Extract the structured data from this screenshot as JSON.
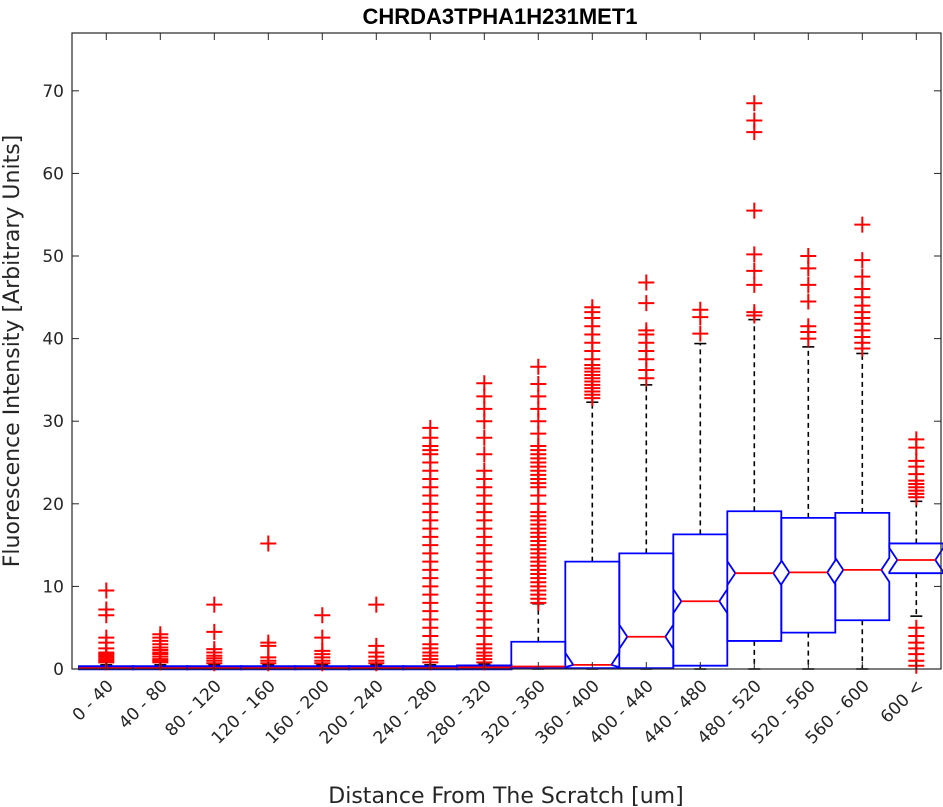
{
  "chart_data": {
    "type": "box",
    "title": "CHRDA3TPHA1H231MET1",
    "xlabel": "Distance From The Scratch [um]",
    "ylabel": "Fluorescence Intensity [Arbitrary Units]",
    "ylim": [
      0,
      77
    ],
    "yticks": [
      0,
      10,
      20,
      30,
      40,
      50,
      60,
      70
    ],
    "notched": true,
    "colors": {
      "box": "#0000ff",
      "median": "#ff0000",
      "outlier": "#ff0000",
      "whisker": "#000000"
    },
    "categories": [
      "0 - 40",
      "40 - 80",
      "80 - 120",
      "120 - 160",
      "160 - 200",
      "200 - 240",
      "240 - 280",
      "280 - 320",
      "320 - 360",
      "360 - 400",
      "400 - 440",
      "440 - 480",
      "480 - 520",
      "520 - 560",
      "560 - 600",
      "600 <"
    ],
    "boxes": [
      {
        "q1": 0,
        "median": 0.1,
        "q3": 0.3,
        "whisker_low": 0,
        "whisker_high": 0.5,
        "outliers": [
          0.8,
          1.0,
          1.2,
          1.4,
          1.6,
          1.8,
          2.0,
          2.5,
          3.2,
          3.8,
          6.5,
          7.2,
          9.5
        ]
      },
      {
        "q1": 0,
        "median": 0.1,
        "q3": 0.3,
        "whisker_low": 0,
        "whisker_high": 0.5,
        "outliers": [
          0.8,
          1.0,
          1.2,
          1.5,
          1.8,
          2.0,
          2.3,
          2.6,
          3.0,
          3.4,
          3.8,
          4.2
        ]
      },
      {
        "q1": 0,
        "median": 0.1,
        "q3": 0.3,
        "whisker_low": 0,
        "whisker_high": 0.5,
        "outliers": [
          0.7,
          1.0,
          1.3,
          1.6,
          2.0,
          2.4,
          4.5,
          7.8
        ]
      },
      {
        "q1": 0,
        "median": 0.1,
        "q3": 0.3,
        "whisker_low": 0,
        "whisker_high": 0.5,
        "outliers": [
          0.7,
          1.0,
          1.4,
          2.8,
          3.2,
          15.2
        ]
      },
      {
        "q1": 0,
        "median": 0.1,
        "q3": 0.3,
        "whisker_low": 0,
        "whisker_high": 0.5,
        "outliers": [
          0.7,
          1.0,
          1.4,
          1.8,
          2.2,
          3.8,
          6.5
        ]
      },
      {
        "q1": 0,
        "median": 0.1,
        "q3": 0.3,
        "whisker_low": 0,
        "whisker_high": 0.5,
        "outliers": [
          0.7,
          1.0,
          1.5,
          2.0,
          2.8,
          7.8
        ]
      },
      {
        "q1": 0,
        "median": 0.1,
        "q3": 0.3,
        "whisker_low": 0,
        "whisker_high": 0.5,
        "outliers": [
          0.8,
          1.2,
          1.6,
          2.0,
          2.5,
          3.0,
          4.0,
          5.0,
          6.0,
          7.0,
          8.0,
          9.0,
          10.0,
          11.0,
          12.0,
          13.0,
          14.0,
          15.0,
          16.0,
          17.0,
          18.0,
          19.0,
          20.0,
          21.0,
          22.0,
          23.0,
          24.0,
          25.0,
          26.0,
          26.5,
          27.0,
          28.0,
          29.2
        ]
      },
      {
        "q1": 0,
        "median": 0.2,
        "q3": 0.4,
        "whisker_low": 0,
        "whisker_high": 0.6,
        "outliers": [
          0.8,
          1.2,
          1.6,
          2.0,
          2.5,
          3.0,
          4.0,
          5.0,
          6.0,
          7.0,
          8.0,
          9.0,
          10.0,
          11.0,
          12.0,
          13.0,
          14.0,
          15.0,
          16.0,
          17.0,
          18.0,
          19.0,
          20.0,
          21.0,
          22.0,
          23.0,
          24.0,
          26.0,
          28.0,
          30.0,
          31.5,
          33.0,
          34.6
        ]
      },
      {
        "q1": 0.1,
        "median": 0.3,
        "q3": 3.3,
        "whisker_low": 0,
        "whisker_high": 7.9,
        "outliers": [
          8.0,
          8.5,
          9.0,
          9.5,
          10.0,
          10.5,
          11.0,
          11.5,
          12.0,
          12.5,
          13.0,
          13.5,
          14.0,
          14.5,
          15.0,
          15.5,
          16.0,
          16.5,
          17.0,
          17.5,
          18.0,
          18.5,
          19.0,
          20.0,
          21.0,
          22.0,
          22.5,
          23.0,
          23.5,
          24.0,
          24.5,
          25.0,
          25.5,
          26.0,
          26.5,
          27.0,
          28.5,
          30.0,
          31.5,
          33.0,
          34.5,
          36.6
        ]
      },
      {
        "q1": 0.1,
        "median": 0.5,
        "q3": 13.0,
        "whisker_low": 0,
        "whisker_high": 32.3,
        "outliers": [
          32.8,
          33.2,
          33.6,
          34.0,
          34.4,
          34.8,
          35.2,
          35.6,
          36.0,
          36.4,
          36.8,
          37.5,
          38.5,
          39.5,
          40.5,
          41.5,
          42.5,
          43.2,
          43.8
        ]
      },
      {
        "q1": 0.1,
        "median": 3.9,
        "q3": 14.0,
        "whisker_low": 0,
        "whisker_high": 34.4,
        "outliers": [
          35.2,
          36.2,
          37.5,
          38.5,
          39.5,
          40.5,
          41.0,
          44.3,
          46.8
        ]
      },
      {
        "q1": 0.4,
        "median": 8.2,
        "q3": 16.3,
        "whisker_low": 0,
        "whisker_high": 39.4,
        "outliers": [
          40.6,
          42.6,
          43.5
        ]
      },
      {
        "q1": 3.4,
        "median": 11.6,
        "q3": 19.1,
        "whisker_low": 0,
        "whisker_high": 42.3,
        "outliers": [
          42.8,
          43.2,
          46.5,
          48.2,
          50.2,
          55.5,
          65.0,
          66.4,
          68.5
        ]
      },
      {
        "q1": 4.4,
        "median": 11.7,
        "q3": 18.3,
        "whisker_low": 0,
        "whisker_high": 39.0,
        "outliers": [
          40.0,
          40.8,
          41.5,
          44.5,
          46.5,
          48.5,
          50.0
        ]
      },
      {
        "q1": 5.9,
        "median": 12.0,
        "q3": 18.9,
        "whisker_low": 0,
        "whisker_high": 38.2,
        "outliers": [
          38.8,
          39.5,
          40.2,
          41.0,
          41.8,
          42.5,
          43.2,
          44.0,
          45.0,
          46.0,
          47.5,
          49.5,
          53.8
        ]
      },
      {
        "q1": 11.6,
        "median": 13.2,
        "q3": 15.2,
        "whisker_low": 6.4,
        "whisker_high": 20.3,
        "outliers": [
          0.4,
          1.0,
          1.8,
          2.5,
          3.2,
          4.0,
          5.0,
          20.8,
          21.2,
          21.6,
          22.0,
          22.4,
          22.8,
          23.6,
          24.5,
          25.2,
          26.8,
          27.8
        ]
      }
    ]
  }
}
